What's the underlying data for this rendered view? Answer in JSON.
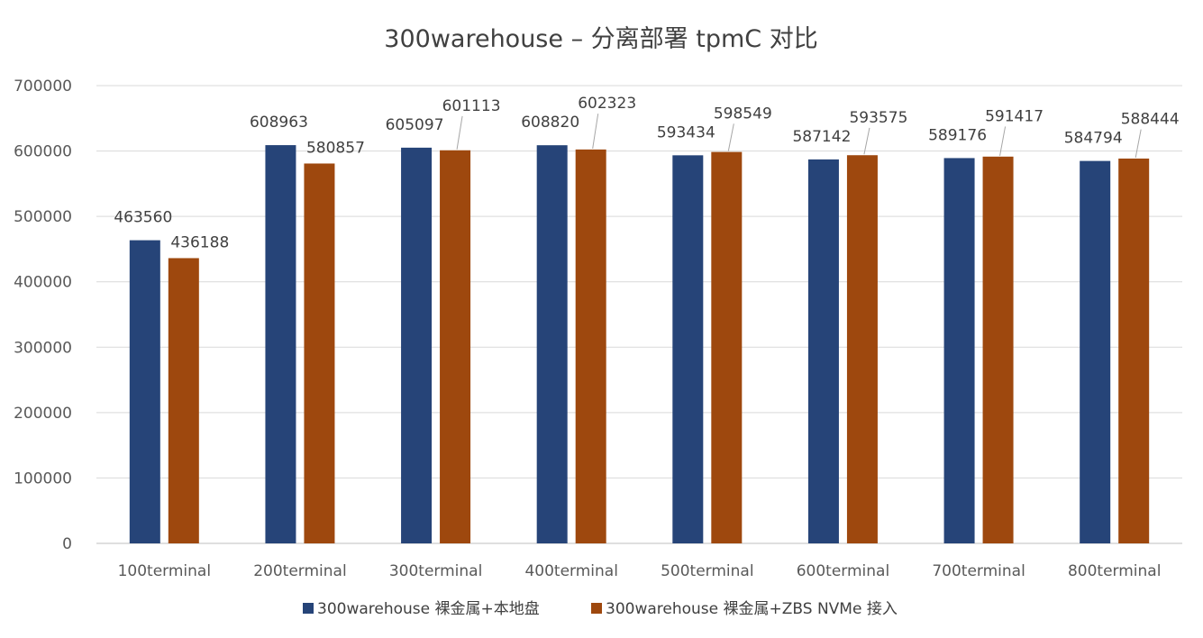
{
  "chart_data": {
    "type": "bar",
    "title": "300warehouse – 分离部署 tpmC 对比",
    "xlabel": "",
    "ylabel": "",
    "categories": [
      "100terminal",
      "200terminal",
      "300terminal",
      "400terminal",
      "500terminal",
      "600terminal",
      "700terminal",
      "800terminal"
    ],
    "series": [
      {
        "name": "300warehouse 裸金属+本地盘",
        "color": "#264478",
        "values": [
          463560,
          608963,
          605097,
          608820,
          593434,
          587142,
          589176,
          584794
        ]
      },
      {
        "name": "300warehouse 裸金属+ZBS NVMe 接入",
        "color": "#9E480E",
        "values": [
          436188,
          580857,
          601113,
          602323,
          598549,
          593575,
          591417,
          588444
        ]
      }
    ],
    "ylim": [
      0,
      700000
    ],
    "yticks": [
      0,
      100000,
      200000,
      300000,
      400000,
      500000,
      600000,
      700000
    ],
    "grid": true,
    "legend_position": "bottom"
  }
}
